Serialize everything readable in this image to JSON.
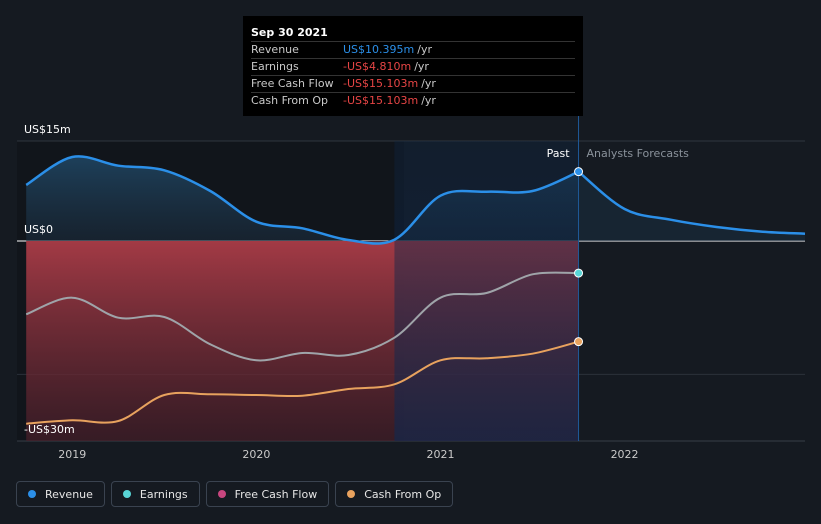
{
  "chart_data": {
    "type": "area",
    "title": "",
    "x_domain": [
      2018.7,
      2022.98
    ],
    "y_domain": [
      -30,
      15
    ],
    "y_tick_labels": [
      {
        "value": 15,
        "label": "US$15m"
      },
      {
        "value": 0,
        "label": "US$0"
      },
      {
        "value": -30,
        "label": "-US$30m"
      }
    ],
    "x_tick_labels": [
      {
        "value": 2019,
        "label": "2019"
      },
      {
        "value": 2020,
        "label": "2020"
      },
      {
        "value": 2021,
        "label": "2021"
      },
      {
        "value": 2022,
        "label": "2022"
      }
    ],
    "past_label": "Past",
    "forecast_label": "Analysts Forecasts",
    "divider_x": 2021.75,
    "highlight_start_x": 2020.75,
    "series": [
      {
        "name": "Revenue",
        "color": "#2b8fe8",
        "area_color": "#1d3a55",
        "x": [
          2018.75,
          2019.0,
          2019.25,
          2019.5,
          2019.75,
          2020.0,
          2020.25,
          2020.5,
          2020.75,
          2021.0,
          2021.25,
          2021.5,
          2021.75
        ],
        "values": [
          8.4,
          12.6,
          11.3,
          10.6,
          7.5,
          2.9,
          1.9,
          0.15,
          0.2,
          6.8,
          7.4,
          7.5,
          10.4
        ]
      },
      {
        "name": "Revenue Forecast",
        "color": "#2b8fe8",
        "x": [
          2021.75,
          2022.0,
          2022.25,
          2022.5,
          2022.75,
          2022.98
        ],
        "values": [
          10.4,
          4.8,
          3.2,
          2.1,
          1.4,
          1.1
        ]
      },
      {
        "name": "Earnings",
        "color": "#9fa4a9",
        "area_color": "#9c3a43",
        "x": [
          2018.75,
          2019.0,
          2019.25,
          2019.5,
          2019.75,
          2020.0,
          2020.25,
          2020.5,
          2020.75,
          2021.0,
          2021.25,
          2021.5,
          2021.75
        ],
        "values": [
          -11.0,
          -8.5,
          -11.5,
          -11.4,
          -15.5,
          -17.9,
          -16.8,
          -17.1,
          -14.5,
          -8.5,
          -7.8,
          -5.0,
          -4.81
        ]
      },
      {
        "name": "Free Cash Flow",
        "color": "#e05aa0",
        "x": [
          2018.75,
          2019.0,
          2019.25,
          2019.5,
          2019.75,
          2020.0,
          2020.25,
          2020.5,
          2020.75,
          2021.0,
          2021.25,
          2021.5,
          2021.75
        ],
        "values": [
          -27.4,
          -26.9,
          -27.0,
          -23.1,
          -23.0,
          -23.1,
          -23.2,
          -22.2,
          -21.5,
          -17.9,
          -17.6,
          -16.9,
          -15.103
        ]
      },
      {
        "name": "Cash From Op",
        "color": "#e8a25e",
        "x": [
          2018.75,
          2019.0,
          2019.25,
          2019.5,
          2019.75,
          2020.0,
          2020.25,
          2020.5,
          2020.75,
          2021.0,
          2021.25,
          2021.5,
          2021.75
        ],
        "values": [
          -27.4,
          -26.9,
          -27.0,
          -23.1,
          -23.0,
          -23.1,
          -23.2,
          -22.2,
          -21.5,
          -17.9,
          -17.6,
          -16.9,
          -15.103
        ]
      }
    ],
    "end_markers": [
      {
        "series": "Revenue",
        "x": 2021.75,
        "value": 10.4,
        "color": "#2b8fe8"
      },
      {
        "series": "Earnings",
        "x": 2021.75,
        "value": -4.81,
        "color": "#58d5d6"
      },
      {
        "series": "Cash From Op",
        "x": 2021.75,
        "value": -15.103,
        "color": "#e8a25e"
      }
    ]
  },
  "tooltip": {
    "date": "Sep 30 2021",
    "rows": [
      {
        "label": "Revenue",
        "value": "US$10.395m",
        "unit": "/yr",
        "color": "#2b8fe8"
      },
      {
        "label": "Earnings",
        "value": "-US$4.810m",
        "unit": "/yr",
        "color": "#e64545"
      },
      {
        "label": "Free Cash Flow",
        "value": "-US$15.103m",
        "unit": "/yr",
        "color": "#e64545"
      },
      {
        "label": "Cash From Op",
        "value": "-US$15.103m",
        "unit": "/yr",
        "color": "#e64545"
      }
    ]
  },
  "legend": [
    {
      "label": "Revenue",
      "color": "#2b8fe8"
    },
    {
      "label": "Earnings",
      "color": "#58d5d6"
    },
    {
      "label": "Free Cash Flow",
      "color": "#c8467f"
    },
    {
      "label": "Cash From Op",
      "color": "#e8a25e"
    }
  ]
}
